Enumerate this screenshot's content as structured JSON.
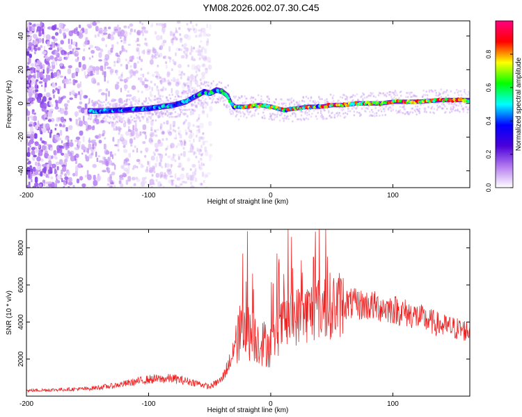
{
  "figure": {
    "title": "YM08.2026.002.07.30.C45"
  },
  "chart_data": [
    {
      "type": "heatmap",
      "xlabel": "Height of straight line (km)",
      "ylabel": "Frequency (Hz)",
      "xlim": [
        -200,
        163
      ],
      "ylim": [
        -50,
        49
      ],
      "xticks": [
        -200,
        -100,
        0,
        100
      ],
      "yticks": [
        -40,
        -20,
        0,
        20,
        40
      ],
      "colorbar": {
        "label": "Normalized spectral amplitude",
        "range": [
          0,
          1
        ],
        "ticks": [
          "0.0",
          "0.2",
          "0.4",
          "0.6",
          "0.8"
        ],
        "colors": [
          "#ffffff",
          "#b57cf0",
          "#4b00d8",
          "#0000ff",
          "#00ffff",
          "#00ff00",
          "#ffff00",
          "#ff0000",
          "#ff0080"
        ]
      },
      "ridge": {
        "x": [
          -150,
          -140,
          -120,
          -100,
          -80,
          -70,
          -60,
          -55,
          -50,
          -45,
          -40,
          -35,
          -32,
          -30,
          -20,
          -10,
          0,
          10,
          20,
          30,
          40,
          50,
          60,
          70,
          80,
          90,
          100,
          110,
          120,
          130,
          140,
          150,
          163
        ],
        "y": [
          -4.5,
          -4.5,
          -4,
          -3,
          -1,
          1,
          5,
          7,
          6,
          8,
          7,
          4,
          -1,
          -2,
          -2,
          -1,
          -2,
          -4,
          -3,
          -2,
          -2,
          -1,
          -1,
          0,
          0,
          0,
          1,
          1,
          1,
          1.5,
          2,
          2,
          2
        ]
      }
    },
    {
      "type": "line",
      "xlabel": "Height of straight line (km)",
      "ylabel": "SNR (10 * v/v)",
      "xlim": [
        -200,
        163
      ],
      "ylim": [
        0,
        9000
      ],
      "xticks": [
        -200,
        -100,
        0,
        100
      ],
      "yticks": [
        2000,
        4000,
        6000,
        8000
      ],
      "series": [
        {
          "name": "SNR",
          "color": "#ee2222",
          "envelope_x": [
            -200,
            -150,
            -130,
            -100,
            -80,
            -60,
            -50,
            -40,
            -30,
            -25,
            -20,
            -10,
            0,
            10,
            20,
            30,
            40,
            60,
            80,
            100,
            120,
            140,
            163
          ],
          "envelope_y": [
            300,
            400,
            550,
            900,
            950,
            700,
            500,
            900,
            2400,
            3500,
            3500,
            3000,
            2700,
            3900,
            4300,
            4500,
            4800,
            5000,
            4900,
            4700,
            4300,
            3800,
            3500
          ],
          "spikes": [
            {
              "x": -19,
              "y": 8900
            },
            {
              "x": 17,
              "y": 8600
            },
            {
              "x": 5,
              "y": 7700
            },
            {
              "x": 35,
              "y": 7500
            }
          ]
        }
      ]
    }
  ]
}
